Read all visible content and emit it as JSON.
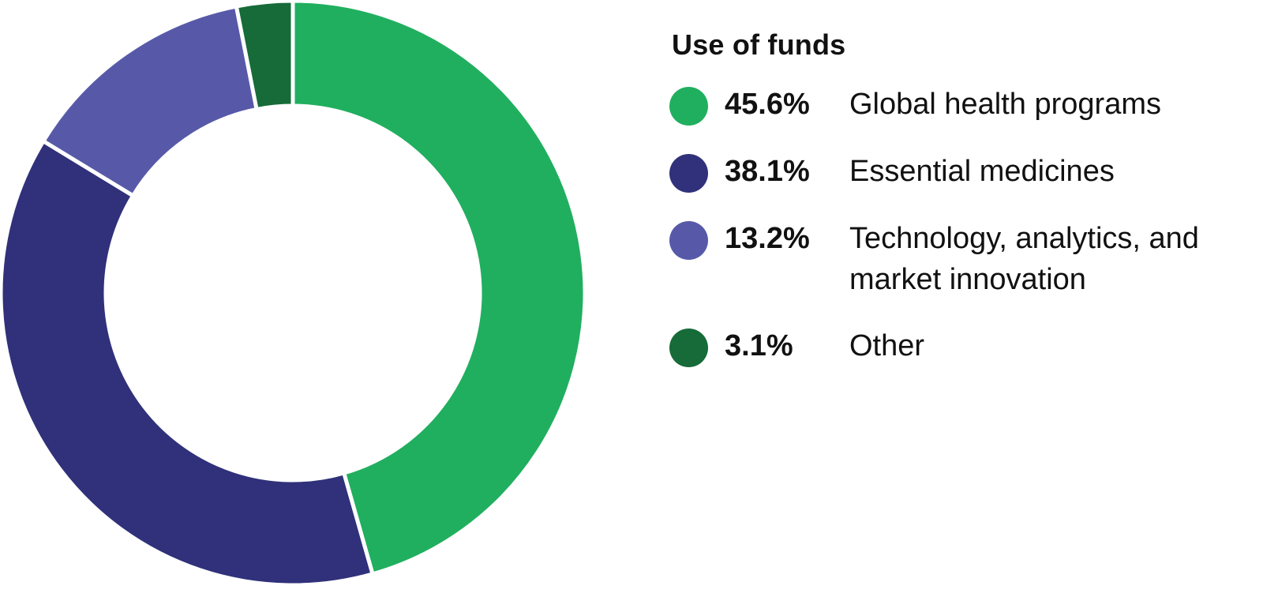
{
  "chart_data": {
    "type": "pie",
    "title": "Use of funds",
    "series": [
      {
        "label": "Global health programs",
        "percent_label": "45.6%",
        "value": 45.6,
        "color": "#20AF5F"
      },
      {
        "label": "Essential medicines",
        "percent_label": "38.1%",
        "value": 38.1,
        "color": "#30317A"
      },
      {
        "label": "Technology, analytics, and market innovation",
        "percent_label": "13.2%",
        "value": 13.2,
        "color": "#5759A8"
      },
      {
        "label": "Other",
        "percent_label": "3.1%",
        "value": 3.1,
        "color": "#166B39"
      }
    ],
    "donut": true,
    "legend_position": "right"
  }
}
